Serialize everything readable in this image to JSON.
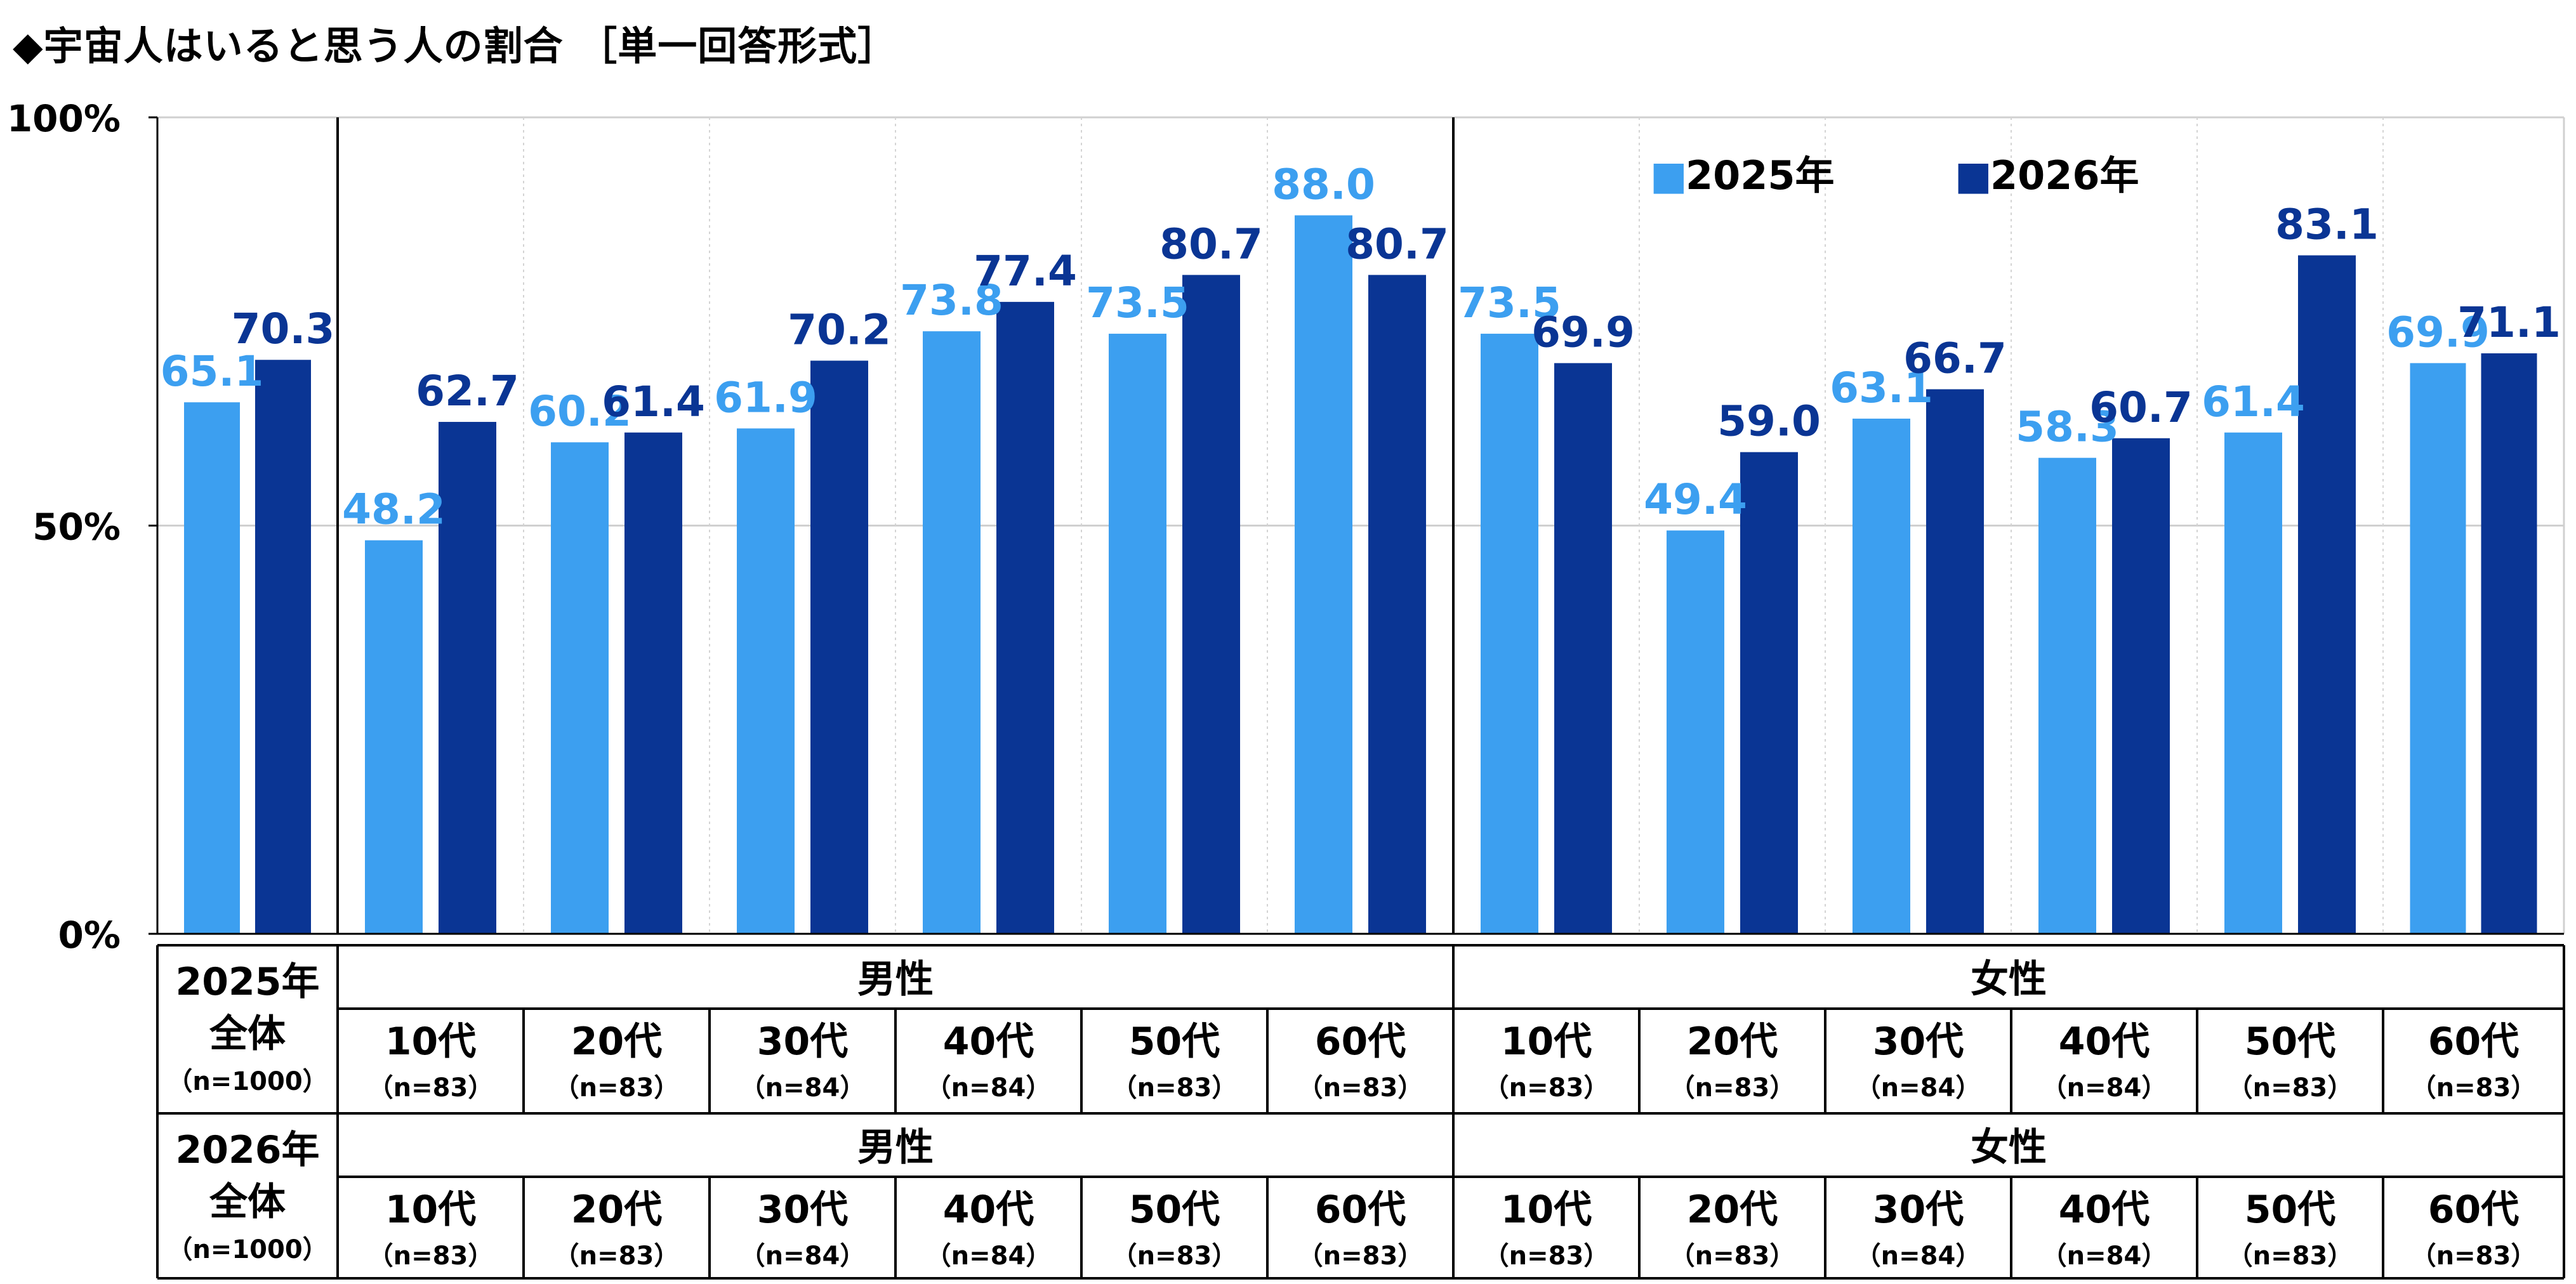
{
  "title": "◆宇宙人はいると思う人の割合 ［単一回答形式］",
  "colors": {
    "s2025": "#3c9ff0",
    "s2026": "#0a3594"
  },
  "chart_data": {
    "type": "bar",
    "title": "◆宇宙人はいると思う人の割合 ［単一回答形式］",
    "ylim": [
      0,
      100
    ],
    "yticks": [
      {
        "value": 0,
        "label": "0%"
      },
      {
        "value": 50,
        "label": "50%"
      },
      {
        "value": 100,
        "label": "100%"
      }
    ],
    "grid": true,
    "legend": {
      "placement": "top-right",
      "items": [
        "■2025年",
        "■2026年"
      ]
    },
    "series": [
      {
        "name": "2025年",
        "values": [
          65.1,
          48.2,
          60.2,
          61.9,
          73.8,
          73.5,
          88.0,
          73.5,
          49.4,
          63.1,
          58.3,
          61.4,
          69.9
        ]
      },
      {
        "name": "2026年",
        "values": [
          70.3,
          62.7,
          61.4,
          70.2,
          77.4,
          80.7,
          80.7,
          69.9,
          59.0,
          66.7,
          60.7,
          83.1,
          71.1
        ]
      }
    ],
    "table": {
      "rows": [
        {
          "year_label": "2025年",
          "total_label": "全体",
          "total_n": "（n=1000）",
          "groups": [
            {
              "label": "男性",
              "ages": [
                "10代",
                "20代",
                "30代",
                "40代",
                "50代",
                "60代"
              ],
              "ns": [
                "（n=83）",
                "（n=83）",
                "（n=84）",
                "（n=84）",
                "（n=83）",
                "（n=83）"
              ]
            },
            {
              "label": "女性",
              "ages": [
                "10代",
                "20代",
                "30代",
                "40代",
                "50代",
                "60代"
              ],
              "ns": [
                "（n=83）",
                "（n=83）",
                "（n=84）",
                "（n=84）",
                "（n=83）",
                "（n=83）"
              ]
            }
          ]
        },
        {
          "year_label": "2026年",
          "total_label": "全体",
          "total_n": "（n=1000）",
          "groups": [
            {
              "label": "男性",
              "ages": [
                "10代",
                "20代",
                "30代",
                "40代",
                "50代",
                "60代"
              ],
              "ns": [
                "（n=83）",
                "（n=83）",
                "（n=84）",
                "（n=84）",
                "（n=83）",
                "（n=83）"
              ]
            },
            {
              "label": "女性",
              "ages": [
                "10代",
                "20代",
                "30代",
                "40代",
                "50代",
                "60代"
              ],
              "ns": [
                "（n=83）",
                "（n=83）",
                "（n=84）",
                "（n=84）",
                "（n=83）",
                "（n=83）"
              ]
            }
          ]
        }
      ]
    }
  }
}
